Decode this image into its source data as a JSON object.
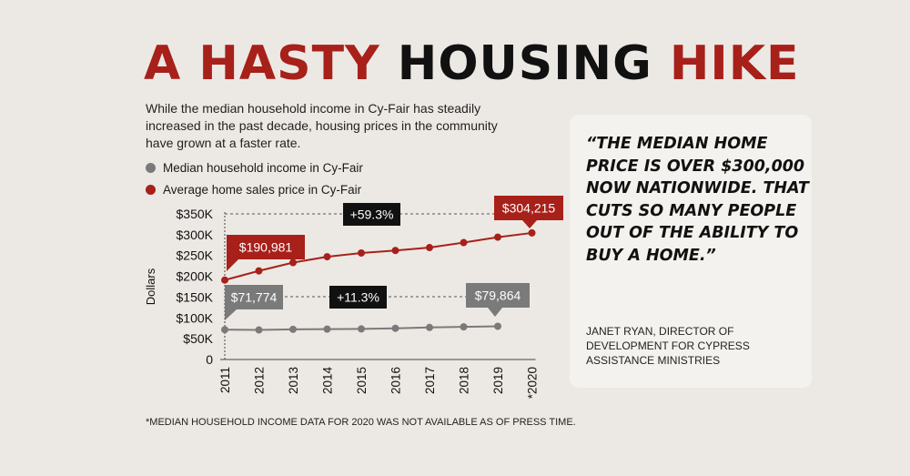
{
  "title": {
    "part1": "A HASTY",
    "part2": "HOUSING",
    "part3": "HIKE"
  },
  "intro": "While the median household income in Cy-Fair has steadily increased in the past decade, housing prices in the community have grown at a faster rate.",
  "colors": {
    "income": "#7a7a7a",
    "price": "#a8201a",
    "dark": "#111111"
  },
  "chart_data": {
    "type": "line",
    "ylabel": "Dollars",
    "ylim": [
      0,
      350000
    ],
    "y_ticks": [
      {
        "value": 0,
        "label": "0"
      },
      {
        "value": 50000,
        "label": "$50K"
      },
      {
        "value": 100000,
        "label": "$100K"
      },
      {
        "value": 150000,
        "label": "$150K"
      },
      {
        "value": 200000,
        "label": "$200K"
      },
      {
        "value": 250000,
        "label": "$250K"
      },
      {
        "value": 300000,
        "label": "$300K"
      },
      {
        "value": 350000,
        "label": "$350K"
      }
    ],
    "categories": [
      "2011",
      "2012",
      "2013",
      "2014",
      "2015",
      "2016",
      "2017",
      "2018",
      "2019",
      "*2020"
    ],
    "series": [
      {
        "name": "Median household income in Cy-Fair",
        "color": "#7a7a7a",
        "values": [
          71774,
          71000,
          72500,
          73000,
          73500,
          75000,
          77000,
          78500,
          79864,
          null
        ]
      },
      {
        "name": "Average home sales price in Cy-Fair",
        "color": "#a8201a",
        "values": [
          190981,
          213000,
          233000,
          247000,
          256000,
          262000,
          269000,
          281000,
          294000,
          304215
        ]
      }
    ],
    "callouts": [
      {
        "series": 1,
        "index": 0,
        "label": "$190,981"
      },
      {
        "series": 1,
        "index": 9,
        "label": "$304,215"
      },
      {
        "series": 0,
        "index": 0,
        "label": "$71,774"
      },
      {
        "series": 0,
        "index": 8,
        "label": "$79,864"
      }
    ],
    "changes": [
      {
        "label": "+59.3%",
        "series": 1
      },
      {
        "label": "+11.3%",
        "series": 0
      }
    ]
  },
  "footnote": "*MEDIAN HOUSEHOLD INCOME DATA FOR 2020 WAS NOT AVAILABLE AS OF PRESS TIME.",
  "quote": {
    "text": "“THE MEDIAN HOME PRICE IS OVER $300,000 NOW NATIONWIDE. THAT CUTS SO MANY PEOPLE OUT OF THE ABILITY TO BUY A HOME.”",
    "attribution": "JANET RYAN, DIRECTOR OF DEVELOPMENT FOR CYPRESS ASSISTANCE MINISTRIES"
  }
}
